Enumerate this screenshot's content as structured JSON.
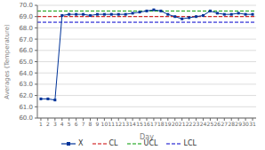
{
  "chart_data": {
    "type": "line",
    "xlabel": "Day",
    "ylabel": "Averages (Temperature)",
    "x": [
      1,
      2,
      3,
      4,
      5,
      6,
      7,
      8,
      9,
      10,
      11,
      12,
      13,
      14,
      15,
      16,
      17,
      18,
      19,
      20,
      21,
      22,
      23,
      24,
      25,
      26,
      27,
      28,
      29,
      30,
      31
    ],
    "series": [
      {
        "name": "X",
        "color": "#003399",
        "marker": "square",
        "line_style": "solid",
        "values": [
          61.7,
          61.7,
          61.6,
          69.1,
          69.2,
          69.2,
          69.2,
          69.1,
          69.2,
          69.2,
          69.2,
          69.2,
          69.2,
          69.3,
          69.4,
          69.5,
          69.6,
          69.5,
          69.2,
          69.0,
          68.8,
          68.9,
          69.0,
          69.1,
          69.5,
          69.3,
          69.2,
          69.2,
          69.3,
          69.2,
          69.2
        ]
      },
      {
        "name": "CL",
        "type": "hline",
        "y": 69.0,
        "color": "#CC0000",
        "line_style": "dashed"
      },
      {
        "name": "UCL",
        "type": "hline",
        "y": 69.5,
        "color": "#009900",
        "line_style": "dashed"
      },
      {
        "name": "LCL",
        "type": "hline",
        "y": 68.5,
        "color": "#0000CC",
        "line_style": "dashed"
      }
    ],
    "xlim": [
      0.5,
      31.5
    ],
    "xticks": [
      1,
      2,
      3,
      4,
      5,
      6,
      7,
      8,
      9,
      10,
      11,
      12,
      13,
      14,
      15,
      16,
      17,
      18,
      19,
      20,
      21,
      22,
      23,
      24,
      25,
      26,
      27,
      28,
      29,
      30,
      31
    ],
    "ylim": [
      60.0,
      70.0
    ],
    "yticks": [
      {
        "value": 60.0,
        "label": "60.0"
      },
      {
        "value": 61.0,
        "label": "61.0"
      },
      {
        "value": 62.0,
        "label": "62.0"
      },
      {
        "value": 63.0,
        "label": "63.0"
      },
      {
        "value": 64.0,
        "label": "64.0"
      },
      {
        "value": 65.0,
        "label": "65.0"
      },
      {
        "value": 66.0,
        "label": "66.0"
      },
      {
        "value": 67.0,
        "label": "67.0"
      },
      {
        "value": 68.0,
        "label": "68.0"
      },
      {
        "value": 69.0,
        "label": "69.0"
      },
      {
        "value": 70.0,
        "label": "70.0"
      }
    ],
    "grid": "y",
    "legend": "bottom"
  }
}
